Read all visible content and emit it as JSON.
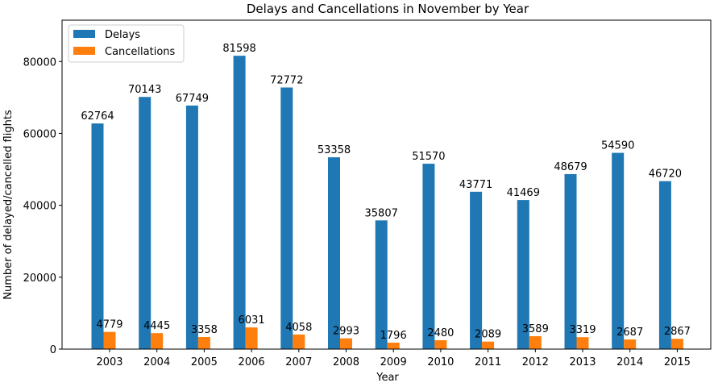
{
  "chart_data": {
    "type": "bar",
    "title": "Delays and Cancellations in November by Year",
    "xlabel": "Year",
    "ylabel": "Number of delayed/cancelled flights",
    "categories": [
      "2003",
      "2004",
      "2005",
      "2006",
      "2007",
      "2008",
      "2009",
      "2010",
      "2011",
      "2012",
      "2013",
      "2014",
      "2015"
    ],
    "series": [
      {
        "name": "Delays",
        "color": "#1f77b4",
        "values": [
          62764,
          70143,
          67749,
          81598,
          72772,
          53358,
          35807,
          51570,
          43771,
          41469,
          48679,
          54590,
          46720
        ]
      },
      {
        "name": "Cancellations",
        "color": "#ff7f0e",
        "values": [
          4779,
          4445,
          3358,
          6031,
          4058,
          2993,
          1796,
          2480,
          2089,
          3589,
          3319,
          2687,
          2867
        ]
      }
    ],
    "ylim": [
      0,
      91500
    ],
    "yticks": [
      0,
      20000,
      40000,
      60000,
      80000
    ],
    "legend": "top-left",
    "grid": false
  }
}
